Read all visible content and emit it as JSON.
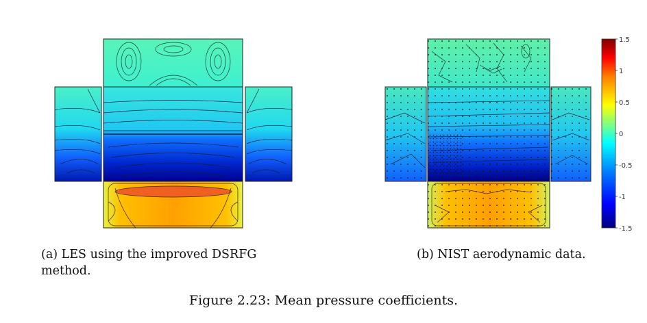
{
  "figure": {
    "caption": "Figure 2.23: Mean pressure coefficients.",
    "panels": [
      {
        "id": "a",
        "caption": "(a) LES using the improved DSRFG method."
      },
      {
        "id": "b",
        "caption": "(b) NIST aerodynamic data."
      }
    ],
    "colorbar": {
      "ticks": [
        "1.5",
        "1",
        "0.5",
        "0",
        "-0.5",
        "-1",
        "-1.5"
      ],
      "range": [
        -1.5,
        1.5
      ],
      "colormap": "jet",
      "colors": [
        "#00007f",
        "#0000ff",
        "#0080ff",
        "#00ffff",
        "#80ff80",
        "#ffff00",
        "#ff8000",
        "#ff0000",
        "#7f0000"
      ]
    }
  }
}
